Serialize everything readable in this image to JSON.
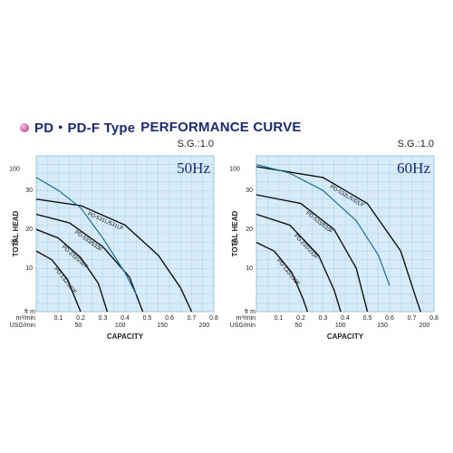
{
  "heading": {
    "series": "PD・PD-F Type",
    "title": "PERFORMANCE CURVE"
  },
  "colors": {
    "plot_background": "#d7ecf8",
    "grid": "#a9cfe8",
    "pump_curve": "#111111",
    "system_curve": "#1b6f94",
    "heading_text": "#1d2a6e",
    "bullet": "#c0569b"
  },
  "chart_data": [
    {
      "type": "line",
      "frequency_label": "50Hz",
      "sg_label": "S.G.:1.0",
      "ylabel": "TOTAL HEAD",
      "xlabel": "CAPACITY",
      "y_unit_ft": "ft",
      "y_unit_m": "m",
      "x_unit_m3": "m³/min",
      "x_unit_usg": "USG/min",
      "y_ft_ticks": [
        "100",
        "50"
      ],
      "y_m_ticks": [
        "30",
        "20",
        "10"
      ],
      "x_m3_ticks": [
        "0.1",
        "0.2",
        "0.3",
        "0.4",
        "0.5",
        "0.6",
        "0.7",
        "0.8"
      ],
      "x_usg_ticks": [
        "50",
        "100",
        "150",
        "200"
      ],
      "xlim": [
        0,
        0.8
      ],
      "ylim_m": [
        0,
        36
      ],
      "series": [
        {
          "name": "PD-531L/531LF",
          "points": [
            [
              0,
              26
            ],
            [
              0.2,
              24.5
            ],
            [
              0.4,
              20
            ],
            [
              0.55,
              13
            ],
            [
              0.65,
              5.5
            ],
            [
              0.7,
              0
            ]
          ]
        },
        {
          "name": "PD-533/533F",
          "points": [
            [
              0,
              22.5
            ],
            [
              0.15,
              20.5
            ],
            [
              0.3,
              15
            ],
            [
              0.42,
              8
            ],
            [
              0.48,
              0
            ]
          ]
        },
        {
          "name": "PD-232/232F",
          "points": [
            [
              0,
              19
            ],
            [
              0.1,
              17
            ],
            [
              0.2,
              12.5
            ],
            [
              0.28,
              6.5
            ],
            [
              0.32,
              0
            ]
          ]
        },
        {
          "name": "PD-132/132F",
          "points": [
            [
              0,
              14
            ],
            [
              0.07,
              12
            ],
            [
              0.14,
              7.5
            ],
            [
              0.2,
              0
            ]
          ]
        },
        {
          "name": "",
          "points": [
            [
              0,
              31
            ],
            [
              0.1,
              28
            ],
            [
              0.2,
              24
            ],
            [
              0.3,
              17
            ],
            [
              0.4,
              9
            ],
            [
              0.45,
              4
            ]
          ]
        }
      ]
    },
    {
      "type": "line",
      "frequency_label": "60Hz",
      "sg_label": "S.G.:1.0",
      "ylabel": "TOTAL HEAD",
      "xlabel": "CAPACITY",
      "y_unit_ft": "ft",
      "y_unit_m": "m",
      "x_unit_m3": "m³/min",
      "x_unit_usg": "USG/min",
      "y_ft_ticks": [
        "100",
        "50"
      ],
      "y_m_ticks": [
        "30",
        "20",
        "10"
      ],
      "x_m3_ticks": [
        "0.1",
        "0.2",
        "0.3",
        "0.4",
        "0.5",
        "0.6",
        "0.7",
        "0.8"
      ],
      "x_usg_ticks": [
        "50",
        "100",
        "150",
        "200"
      ],
      "xlim": [
        0,
        0.8
      ],
      "ylim_m": [
        0,
        36
      ],
      "series": [
        {
          "name": "PD-532L/532LF",
          "points": [
            [
              0,
              33.5
            ],
            [
              0.3,
              31
            ],
            [
              0.5,
              25
            ],
            [
              0.65,
              14
            ],
            [
              0.72,
              3
            ],
            [
              0.74,
              0
            ]
          ]
        },
        {
          "name": "PD-533/533F",
          "points": [
            [
              0,
              27
            ],
            [
              0.2,
              25
            ],
            [
              0.35,
              19
            ],
            [
              0.45,
              10
            ],
            [
              0.5,
              0
            ]
          ]
        },
        {
          "name": "PD-232/232F",
          "points": [
            [
              0,
              22.5
            ],
            [
              0.15,
              20
            ],
            [
              0.28,
              13
            ],
            [
              0.35,
              5
            ],
            [
              0.38,
              0
            ]
          ]
        },
        {
          "name": "PD-132/132F",
          "points": [
            [
              0,
              16
            ],
            [
              0.08,
              14
            ],
            [
              0.16,
              9
            ],
            [
              0.21,
              3
            ],
            [
              0.23,
              0
            ]
          ]
        },
        {
          "name": "",
          "points": [
            [
              0,
              34
            ],
            [
              0.15,
              32
            ],
            [
              0.3,
              28
            ],
            [
              0.45,
              21
            ],
            [
              0.55,
              13
            ],
            [
              0.6,
              6
            ]
          ]
        }
      ]
    }
  ]
}
